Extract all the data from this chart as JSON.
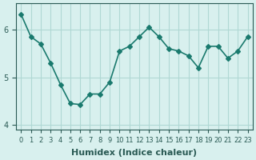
{
  "x": [
    0,
    1,
    2,
    3,
    4,
    5,
    6,
    7,
    8,
    9,
    10,
    11,
    12,
    13,
    14,
    15,
    16,
    17,
    18,
    19,
    20,
    21,
    22,
    23
  ],
  "y": [
    6.32,
    5.85,
    5.7,
    5.3,
    4.85,
    4.45,
    4.43,
    4.65,
    4.65,
    4.9,
    5.55,
    5.65,
    5.85,
    6.05,
    5.85,
    5.6,
    5.55,
    5.45,
    5.2,
    5.65,
    5.65,
    5.4,
    5.55,
    5.85
  ],
  "line_color": "#1a7a6e",
  "marker": "D",
  "marker_size": 3,
  "bg_color": "#d8f0ee",
  "grid_color": "#b0d8d4",
  "xlabel": "Humidex (Indice chaleur)",
  "yticks": [
    4,
    5,
    6
  ],
  "xtick_labels": [
    "0",
    "1",
    "2",
    "3",
    "4",
    "5",
    "6",
    "7",
    "8",
    "9",
    "10",
    "11",
    "12",
    "13",
    "14",
    "15",
    "16",
    "17",
    "18",
    "19",
    "20",
    "21",
    "22",
    "23"
  ],
  "ylim": [
    3.9,
    6.55
  ],
  "xlim": [
    -0.5,
    23.5
  ],
  "xlabel_fontsize": 8,
  "tick_fontsize": 7,
  "linewidth": 1.2,
  "tick_color": "#2a5a54"
}
